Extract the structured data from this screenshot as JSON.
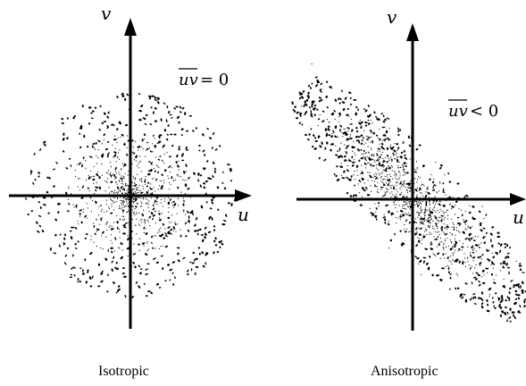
{
  "panels": [
    {
      "id": "isotropic",
      "caption": "Isotropic",
      "x_axis_label": "u",
      "y_axis_label": "v",
      "annotation_symbol": "uv",
      "annotation_relation": "= 0",
      "distribution": "circular"
    },
    {
      "id": "anisotropic",
      "caption": "Anisotropic",
      "x_axis_label": "u",
      "y_axis_label": "v",
      "annotation_symbol": "uv",
      "annotation_relation": "< 0",
      "distribution": "elliptical, tilted along v = -u"
    }
  ],
  "colors": {
    "ink": "#000000",
    "background": "#ffffff"
  }
}
